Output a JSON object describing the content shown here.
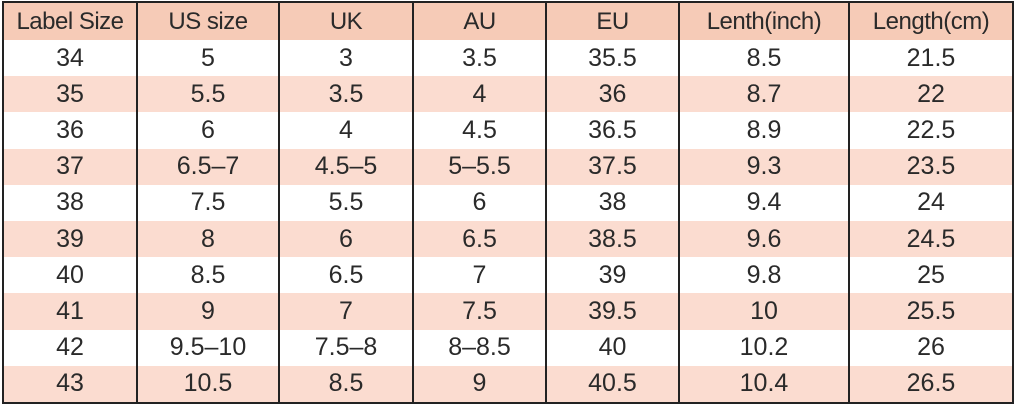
{
  "headers": [
    "Label Size",
    "US size",
    "UK",
    "AU",
    "EU",
    "Lenth(inch)",
    "Length(cm)"
  ],
  "rows": [
    [
      "34",
      "5",
      "3",
      "3.5",
      "35.5",
      "8.5",
      "21.5"
    ],
    [
      "35",
      "5.5",
      "3.5",
      "4",
      "36",
      "8.7",
      "22"
    ],
    [
      "36",
      "6",
      "4",
      "4.5",
      "36.5",
      "8.9",
      "22.5"
    ],
    [
      "37",
      "6.5–7",
      "4.5–5",
      "5–5.5",
      "37.5",
      "9.3",
      "23.5"
    ],
    [
      "38",
      "7.5",
      "5.5",
      "6",
      "38",
      "9.4",
      "24"
    ],
    [
      "39",
      "8",
      "6",
      "6.5",
      "38.5",
      "9.6",
      "24.5"
    ],
    [
      "40",
      "8.5",
      "6.5",
      "7",
      "39",
      "9.8",
      "25"
    ],
    [
      "41",
      "9",
      "7",
      "7.5",
      "39.5",
      "10",
      "25.5"
    ],
    [
      "42",
      "9.5–10",
      "7.5–8",
      "8–8.5",
      "40",
      "10.2",
      "26"
    ],
    [
      "43",
      "10.5",
      "8.5",
      "9",
      "40.5",
      "10.4",
      "26.5"
    ]
  ],
  "colors": {
    "header_bg": "#f6cbb7",
    "stripe_bg": "#fbdcd0",
    "plain_bg": "#ffffff",
    "border": "#222222",
    "text": "#2a2a2a"
  }
}
